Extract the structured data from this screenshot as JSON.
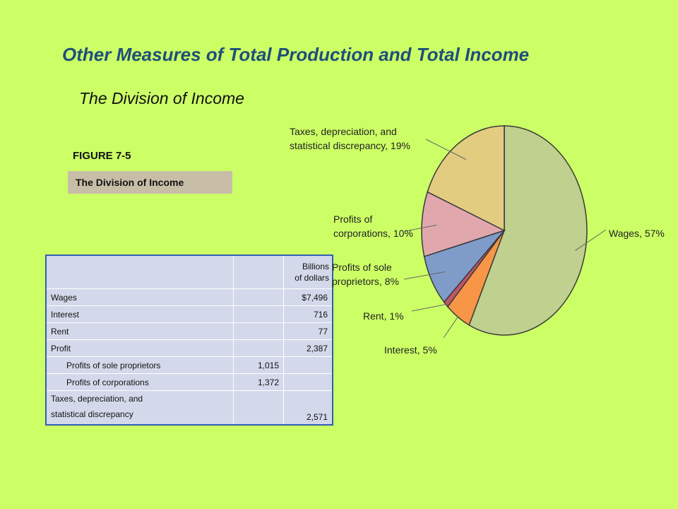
{
  "slide": {
    "title": "Other Measures of Total Production and Total Income",
    "subtitle": "The Division of Income"
  },
  "figure": {
    "number": "FIGURE 7-5",
    "caption": "The Division of Income"
  },
  "table": {
    "header": [
      "Billions",
      "of dollars"
    ],
    "rows": [
      {
        "label": "Wages",
        "sub": "",
        "total": "$7,496"
      },
      {
        "label": "Interest",
        "sub": "",
        "total": "716"
      },
      {
        "label": "Rent",
        "sub": "",
        "total": "77"
      },
      {
        "label": "Profit",
        "sub": "",
        "total": "2,387"
      },
      {
        "label": "Profits of sole proprietors",
        "sub": "1,015",
        "total": ""
      },
      {
        "label": "Profits of corporations",
        "sub": "1,372",
        "total": ""
      },
      {
        "label": [
          "Taxes, depreciation, and",
          "statistical discrepancy"
        ],
        "sub": "",
        "total": "2,571"
      }
    ]
  },
  "chart_data": {
    "type": "pie",
    "slices": [
      {
        "label": "Wages, 57%",
        "value": 57,
        "color": "#bfd08f"
      },
      {
        "label": "Interest, 5%",
        "value": 5,
        "color": "#f79646"
      },
      {
        "label": "Rent, 1%",
        "value": 1,
        "color": "#c0566a"
      },
      {
        "label": "Profits of sole proprietors, 8%",
        "value": 8,
        "color": "#7f9cc9"
      },
      {
        "label": "Profits of corporations, 10%",
        "value": 10,
        "color": "#e0a8ad"
      },
      {
        "label": "Taxes, depreciation, and statistical discrepancy, 19%",
        "value": 19,
        "color": "#e2cc80"
      }
    ],
    "display_labels": [
      [
        "Wages, 57%"
      ],
      [
        "Interest, 5%"
      ],
      [
        "Rent, 1%"
      ],
      [
        "Profits of sole",
        "proprietors, 8%"
      ],
      [
        "Profits of",
        "corporations, 10%"
      ],
      [
        "Taxes, depreciation, and",
        "statistical discrepancy, 19%"
      ]
    ],
    "start": "12 o'clock",
    "direction": "clockwise"
  }
}
